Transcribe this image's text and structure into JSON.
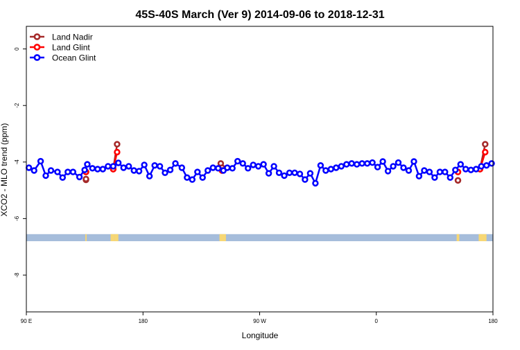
{
  "chart_data": {
    "type": "line",
    "title": "45S-40S March (Ver 9)   2014-09-06 to 2018-12-31",
    "xlabel": "Longitude",
    "ylabel": "XCO2 - MLO trend (ppm)",
    "xlim": [
      90,
      450
    ],
    "ylim": [
      -9.3,
      0.8
    ],
    "x_ticks": [
      {
        "value": 90,
        "label": "90 E"
      },
      {
        "value": 180,
        "label": "180"
      },
      {
        "value": 270,
        "label": "90 W"
      },
      {
        "value": 360,
        "label": "0"
      },
      {
        "value": 450,
        "label": "180"
      }
    ],
    "x_note": "x values are longitude measured eastward from 0 E, continuing past 180 to 450 (=180) so the axis wraps around the globe",
    "y_ticks": [
      0,
      -2,
      -4,
      -6,
      -8
    ],
    "legend_position": "top-left",
    "grid": false,
    "land_band": {
      "y_range": [
        -6.8,
        -6.55
      ],
      "ocean_color": "#a6bddb",
      "land_color": "#f7d774",
      "land_spans": [
        [
          135.5,
          136.5
        ],
        [
          155,
          158
        ],
        [
          158,
          161
        ],
        [
          239,
          244
        ],
        [
          422,
          424
        ],
        [
          439,
          442
        ],
        [
          442,
          445
        ]
      ]
    },
    "series": [
      {
        "name": "Land Nadir",
        "color": "#a52a2a",
        "segments": [
          [
            {
              "x": 136,
              "y": -4.63
            },
            {
              "x": 136,
              "y": -4.6
            }
          ],
          [
            {
              "x": 157,
              "y": -4.25
            },
            {
              "x": 160,
              "y": -3.37
            }
          ],
          [
            {
              "x": 240,
              "y": -4.05
            },
            {
              "x": 241,
              "y": -4.2
            }
          ],
          [
            {
              "x": 423,
              "y": -4.65
            },
            {
              "x": 423,
              "y": -4.65
            }
          ],
          [
            {
              "x": 440,
              "y": -4.25
            },
            {
              "x": 444,
              "y": -3.37
            }
          ]
        ]
      },
      {
        "name": "Land Glint",
        "color": "#ff0000",
        "segments": [
          [
            {
              "x": 136,
              "y": -4.35
            },
            {
              "x": 136,
              "y": -4.35
            }
          ],
          [
            {
              "x": 157,
              "y": -4.25
            },
            {
              "x": 160,
              "y": -3.65
            }
          ],
          [
            {
              "x": 241,
              "y": -4.3
            },
            {
              "x": 241,
              "y": -4.3
            }
          ],
          [
            {
              "x": 423,
              "y": -4.35
            },
            {
              "x": 423,
              "y": -4.35
            }
          ],
          [
            {
              "x": 440,
              "y": -4.25
            },
            {
              "x": 444,
              "y": -3.65
            }
          ]
        ]
      },
      {
        "name": "Ocean Glint",
        "color": "#0000ff",
        "x": [
          92,
          96,
          101,
          105,
          109,
          114,
          118,
          122,
          126,
          131,
          135,
          137,
          141,
          145,
          149,
          153,
          157,
          161,
          165,
          169,
          173,
          177,
          181,
          185,
          189,
          193,
          197,
          201,
          205,
          210,
          214,
          218,
          222,
          226,
          230,
          234,
          238,
          242,
          245,
          249,
          253,
          257,
          261,
          265,
          269,
          273,
          277,
          281,
          285,
          289,
          293,
          297,
          301,
          305,
          309,
          313,
          317,
          321,
          325,
          329,
          333,
          337,
          341,
          345,
          349,
          353,
          357,
          361,
          365,
          369,
          373,
          377,
          381,
          385,
          389,
          393,
          397,
          401,
          405,
          409,
          413,
          417,
          421,
          425,
          429,
          433,
          437,
          441,
          445,
          449
        ],
        "y": [
          -4.2,
          -4.3,
          -3.97,
          -4.48,
          -4.3,
          -4.35,
          -4.55,
          -4.35,
          -4.35,
          -4.53,
          -4.28,
          -4.08,
          -4.22,
          -4.25,
          -4.25,
          -4.15,
          -4.15,
          -4.03,
          -4.2,
          -4.15,
          -4.3,
          -4.32,
          -4.1,
          -4.5,
          -4.12,
          -4.15,
          -4.38,
          -4.28,
          -4.05,
          -4.2,
          -4.55,
          -4.62,
          -4.35,
          -4.55,
          -4.3,
          -4.2,
          -4.22,
          -4.3,
          -4.2,
          -4.22,
          -3.97,
          -4.05,
          -4.22,
          -4.1,
          -4.15,
          -4.08,
          -4.4,
          -4.15,
          -4.38,
          -4.48,
          -4.38,
          -4.38,
          -4.42,
          -4.62,
          -4.4,
          -4.75,
          -4.12,
          -4.3,
          -4.25,
          -4.2,
          -4.15,
          -4.08,
          -4.05,
          -4.08,
          -4.05,
          -4.05,
          -4.02,
          -4.18,
          -3.98,
          -4.32,
          -4.15,
          -4.02,
          -4.2,
          -4.3,
          -3.98,
          -4.5,
          -4.3,
          -4.35,
          -4.55,
          -4.35,
          -4.35,
          -4.55,
          -4.28,
          -4.08,
          -4.25,
          -4.28,
          -4.25,
          -4.15,
          -4.12,
          -4.05
        ]
      }
    ]
  }
}
